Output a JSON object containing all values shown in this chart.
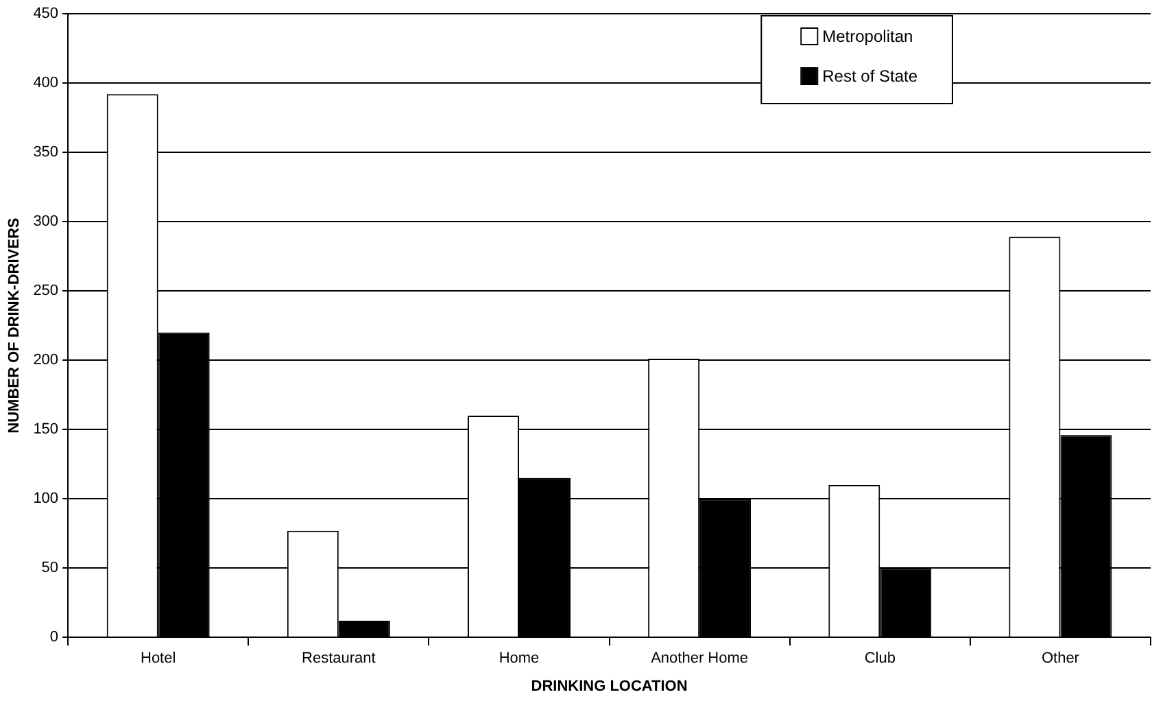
{
  "chart_data": {
    "type": "bar",
    "xlabel": "DRINKING LOCATION",
    "ylabel": "NUMBER OF DRINK-DRIVERS",
    "categories": [
      "Hotel",
      "Restaurant",
      "Home",
      "Another Home",
      "Club",
      "Other"
    ],
    "series": [
      {
        "name": "Metropolitan",
        "color": "#ffffff",
        "values": [
          392,
          77,
          160,
          201,
          110,
          289
        ]
      },
      {
        "name": "Rest of State",
        "color": "#000000",
        "values": [
          220,
          12,
          115,
          100,
          50,
          146
        ]
      }
    ],
    "ylim": [
      0,
      450
    ],
    "yticks": [
      0,
      50,
      100,
      150,
      200,
      250,
      300,
      350,
      400,
      450
    ],
    "grid": "y",
    "legend": "top right"
  }
}
